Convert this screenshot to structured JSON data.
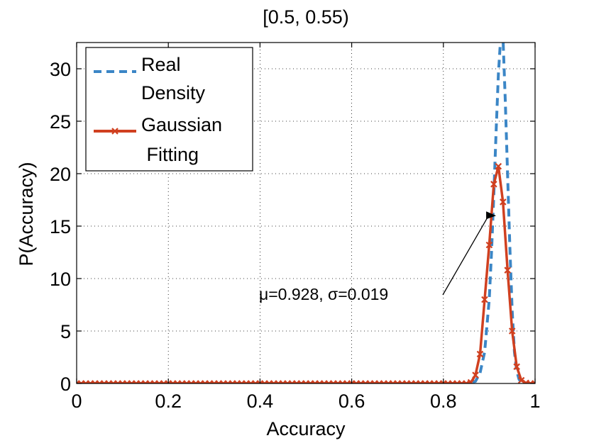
{
  "chart_data": {
    "type": "line",
    "title": "[0.5, 0.55)",
    "xlabel": "Accuracy",
    "ylabel": "P(Accuracy)",
    "xlim": [
      0,
      1
    ],
    "ylim": [
      0,
      32.5
    ],
    "grid": true,
    "legend_position": "top-left",
    "x_ticks": [
      0,
      0.2,
      0.4,
      0.6,
      0.8,
      1
    ],
    "x_tick_labels": [
      "0",
      "0.2",
      "0.4",
      "0.6",
      "0.8",
      "1"
    ],
    "y_ticks": [
      0,
      5,
      10,
      15,
      20,
      25,
      30
    ],
    "y_tick_labels": [
      "0",
      "5",
      "10",
      "15",
      "20",
      "25",
      "30"
    ],
    "annotation": {
      "text": "μ=0.928, σ=0.019",
      "arrow_to": [
        0.915,
        16.0
      ]
    },
    "series": [
      {
        "name": "Real Density",
        "legend_lines": [
          "Real",
          "Density"
        ],
        "color": "#3b86c6",
        "style": "dashed",
        "x": [
          0,
          0.85,
          0.87,
          0.88,
          0.89,
          0.9,
          0.905,
          0.91,
          0.915,
          0.92,
          0.925,
          0.93,
          0.935,
          0.94,
          0.945,
          0.95,
          0.955,
          0.96,
          0.965,
          0.97,
          0.975,
          0.98,
          0.99,
          1.0
        ],
        "y": [
          0,
          0,
          0.2,
          1.0,
          3.0,
          8.0,
          12.5,
          18.0,
          24.0,
          29.5,
          33.0,
          33.0,
          27.0,
          20.0,
          13.0,
          7.0,
          3.0,
          1.2,
          0.4,
          0.1,
          0,
          0,
          0,
          0
        ]
      },
      {
        "name": "Gaussian Fitting",
        "legend_lines": [
          "Gaussian",
          " Fitting"
        ],
        "color": "#d04020",
        "style": "solid",
        "marker": "x",
        "x": [
          0,
          0.01,
          0.02,
          0.03,
          0.04,
          0.05,
          0.06,
          0.07,
          0.08,
          0.09,
          0.1,
          0.11,
          0.12,
          0.13,
          0.14,
          0.15,
          0.16,
          0.17,
          0.18,
          0.19,
          0.2,
          0.21,
          0.22,
          0.23,
          0.24,
          0.25,
          0.26,
          0.27,
          0.28,
          0.29,
          0.3,
          0.31,
          0.32,
          0.33,
          0.34,
          0.35,
          0.36,
          0.37,
          0.38,
          0.39,
          0.4,
          0.41,
          0.42,
          0.43,
          0.44,
          0.45,
          0.46,
          0.47,
          0.48,
          0.49,
          0.5,
          0.51,
          0.52,
          0.53,
          0.54,
          0.55,
          0.56,
          0.57,
          0.58,
          0.59,
          0.6,
          0.61,
          0.62,
          0.63,
          0.64,
          0.65,
          0.66,
          0.67,
          0.68,
          0.69,
          0.7,
          0.71,
          0.72,
          0.73,
          0.74,
          0.75,
          0.76,
          0.77,
          0.78,
          0.79,
          0.8,
          0.81,
          0.82,
          0.83,
          0.84,
          0.85,
          0.86,
          0.87,
          0.88,
          0.89,
          0.9,
          0.91,
          0.92,
          0.93,
          0.94,
          0.95,
          0.96,
          0.97,
          0.98,
          0.99,
          1.0
        ],
        "y": [
          0,
          0,
          0,
          0,
          0,
          0,
          0,
          0,
          0,
          0,
          0,
          0,
          0,
          0,
          0,
          0,
          0,
          0,
          0,
          0,
          0,
          0,
          0,
          0,
          0,
          0,
          0,
          0,
          0,
          0,
          0,
          0,
          0,
          0,
          0,
          0,
          0,
          0,
          0,
          0,
          0,
          0,
          0,
          0,
          0,
          0,
          0,
          0,
          0,
          0,
          0,
          0,
          0,
          0,
          0,
          0,
          0,
          0,
          0,
          0,
          0,
          0,
          0,
          0,
          0,
          0,
          0,
          0,
          0,
          0,
          0,
          0,
          0,
          0,
          0,
          0,
          0,
          0,
          0,
          0,
          0,
          0,
          0,
          0,
          0,
          0,
          0.1,
          0.8,
          2.8,
          8.0,
          13.2,
          19.0,
          20.7,
          17.3,
          10.8,
          5.0,
          1.6,
          0.3,
          0.05,
          0,
          0
        ]
      }
    ]
  }
}
